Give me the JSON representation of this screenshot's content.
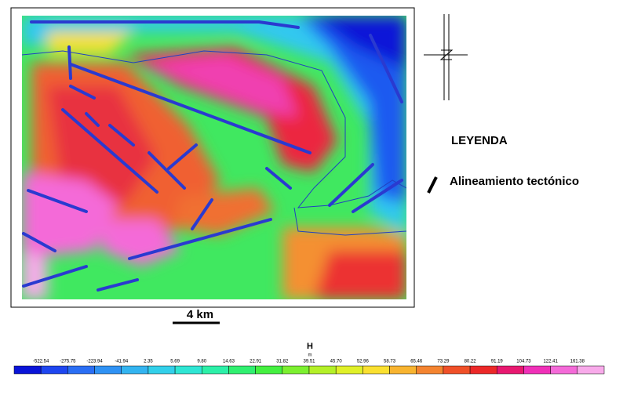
{
  "legend": {
    "title": "LEYENDA",
    "items": [
      {
        "label": "Alineamiento tectónico"
      }
    ]
  },
  "scale_bar": {
    "label": "4 km"
  },
  "colorbar": {
    "title": "H",
    "unit": "m",
    "labels": [
      "-522.54",
      "-275.75",
      "-223.94",
      "-41.94",
      "2.35",
      "5.69",
      "9.80",
      "14.63",
      "22.91",
      "31.82",
      "39.51",
      "45.70",
      "52.96",
      "58.73",
      "65.46",
      "73.29",
      "80.22",
      "91.19",
      "104.73",
      "122.41",
      "161.38"
    ],
    "colors": [
      "#0a14d8",
      "#1e46f0",
      "#2a6ef4",
      "#2f92f4",
      "#33b4f0",
      "#32d0ea",
      "#2fe6d4",
      "#2cf0a8",
      "#30f070",
      "#44f040",
      "#7cf030",
      "#b4f028",
      "#e0f028",
      "#fae030",
      "#f8b430",
      "#f48430",
      "#f05028",
      "#ec2828",
      "#e81870",
      "#f030b8",
      "#f46ad8",
      "#f8aaea"
    ]
  }
}
